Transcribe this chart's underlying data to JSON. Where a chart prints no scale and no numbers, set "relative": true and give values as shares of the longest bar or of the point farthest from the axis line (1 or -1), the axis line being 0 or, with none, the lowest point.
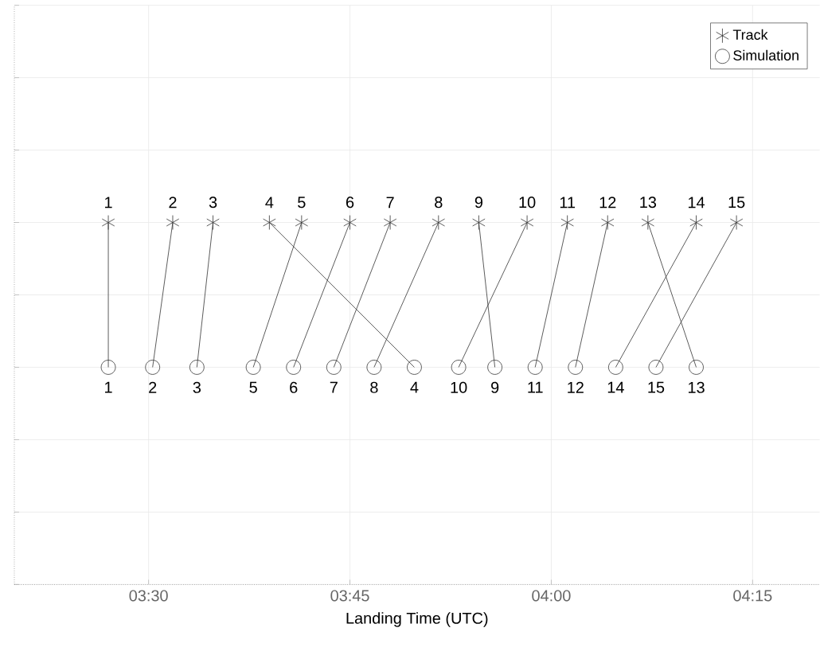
{
  "chart_data": {
    "type": "scatter",
    "xlabel": "Landing Time (UTC)",
    "xlim": [
      3.3333,
      4.3333
    ],
    "xticks": [
      {
        "value": 3.5,
        "label": "03:30"
      },
      {
        "value": 3.75,
        "label": "03:45"
      },
      {
        "value": 4.0,
        "label": "04:00"
      },
      {
        "value": 4.25,
        "label": "04:15"
      }
    ],
    "relative": true,
    "grid": true,
    "legend": "top right",
    "series": [
      {
        "name": "Track",
        "marker": "cross",
        "color": "#333333",
        "x": [
          3.45,
          3.53,
          3.58,
          3.65,
          3.69,
          3.75,
          3.8,
          3.86,
          3.91,
          3.97,
          4.02,
          4.07,
          4.12,
          4.18,
          4.23
        ],
        "values": [
          1,
          1,
          1,
          1,
          1,
          1,
          1,
          1,
          1,
          1,
          1,
          1,
          1,
          1,
          1
        ]
      },
      {
        "name": "Simulation",
        "marker": "circle",
        "color": "#333333",
        "x": [
          3.45,
          3.505,
          3.56,
          3.83,
          3.63,
          3.68,
          3.73,
          3.78,
          3.93,
          3.885,
          3.98,
          4.03,
          4.18,
          4.08,
          4.13
        ],
        "values": [
          0.6,
          0.6,
          0.6,
          0.6,
          0.6,
          0.6,
          0.6,
          0.6,
          0.6,
          0.6,
          0.6,
          0.6,
          0.6,
          0.6,
          0.6
        ]
      },
      {
        "type": "line",
        "marker": "none",
        "line_style": "solid",
        "color": "#333333",
        "x": [
          3.45,
          3.45
        ],
        "values": [
          1,
          0.6
        ]
      },
      {
        "type": "line",
        "marker": "none",
        "line_style": "solid",
        "color": "#333333",
        "x": [
          3.53,
          3.505
        ],
        "values": [
          1,
          0.6
        ]
      },
      {
        "type": "line",
        "marker": "none",
        "line_style": "solid",
        "color": "#333333",
        "x": [
          3.58,
          3.56
        ],
        "values": [
          1,
          0.6
        ]
      },
      {
        "type": "line",
        "marker": "none",
        "line_style": "solid",
        "color": "#333333",
        "x": [
          3.65,
          3.83
        ],
        "values": [
          1,
          0.6
        ]
      },
      {
        "type": "line",
        "marker": "none",
        "line_style": "solid",
        "color": "#333333",
        "x": [
          3.69,
          3.63
        ],
        "values": [
          1,
          0.6
        ]
      },
      {
        "type": "line",
        "marker": "none",
        "line_style": "solid",
        "color": "#333333",
        "x": [
          3.75,
          3.68
        ],
        "values": [
          1,
          0.6
        ]
      },
      {
        "type": "line",
        "marker": "none",
        "line_style": "solid",
        "color": "#333333",
        "x": [
          3.8,
          3.73
        ],
        "values": [
          1,
          0.6
        ]
      },
      {
        "type": "line",
        "marker": "none",
        "line_style": "solid",
        "color": "#333333",
        "x": [
          3.86,
          3.78
        ],
        "values": [
          1,
          0.6
        ]
      },
      {
        "type": "line",
        "marker": "none",
        "line_style": "solid",
        "color": "#333333",
        "x": [
          3.91,
          3.93
        ],
        "values": [
          1,
          0.6
        ]
      },
      {
        "type": "line",
        "marker": "none",
        "line_style": "solid",
        "color": "#333333",
        "x": [
          3.97,
          3.885
        ],
        "values": [
          1,
          0.6
        ]
      },
      {
        "type": "line",
        "marker": "none",
        "line_style": "solid",
        "color": "#333333",
        "x": [
          4.02,
          3.98
        ],
        "values": [
          1,
          0.6
        ]
      },
      {
        "type": "line",
        "marker": "none",
        "line_style": "solid",
        "color": "#333333",
        "x": [
          4.07,
          4.03
        ],
        "values": [
          1,
          0.6
        ]
      },
      {
        "type": "line",
        "marker": "none",
        "line_style": "solid",
        "color": "#333333",
        "x": [
          4.12,
          4.18
        ],
        "values": [
          1,
          0.6
        ]
      },
      {
        "type": "line",
        "marker": "none",
        "line_style": "solid",
        "color": "#333333",
        "x": [
          4.18,
          4.08
        ],
        "values": [
          1,
          0.6
        ]
      },
      {
        "type": "line",
        "marker": "none",
        "line_style": "solid",
        "color": "#333333",
        "x": [
          4.23,
          4.13
        ],
        "values": [
          1,
          0.6
        ]
      }
    ],
    "annotations": [
      {
        "text": "1",
        "x": 3.45,
        "y": 1
      },
      {
        "text": "2",
        "x": 3.53,
        "y": 1
      },
      {
        "text": "3",
        "x": 3.58,
        "y": 1
      },
      {
        "text": "4",
        "x": 3.65,
        "y": 1
      },
      {
        "text": "5",
        "x": 3.69,
        "y": 1
      },
      {
        "text": "6",
        "x": 3.75,
        "y": 1
      },
      {
        "text": "7",
        "x": 3.8,
        "y": 1
      },
      {
        "text": "8",
        "x": 3.86,
        "y": 1
      },
      {
        "text": "9",
        "x": 3.91,
        "y": 1
      },
      {
        "text": "10",
        "x": 3.97,
        "y": 1
      },
      {
        "text": "11",
        "x": 4.02,
        "y": 1
      },
      {
        "text": "12",
        "x": 4.07,
        "y": 1
      },
      {
        "text": "13",
        "x": 4.12,
        "y": 1
      },
      {
        "text": "14",
        "x": 4.18,
        "y": 1
      },
      {
        "text": "15",
        "x": 4.23,
        "y": 1
      },
      {
        "text": "1",
        "x": 3.45,
        "y": 0.6
      },
      {
        "text": "2",
        "x": 3.505,
        "y": 0.6
      },
      {
        "text": "3",
        "x": 3.56,
        "y": 0.6
      },
      {
        "text": "4",
        "x": 3.83,
        "y": 0.6
      },
      {
        "text": "5",
        "x": 3.63,
        "y": 0.6
      },
      {
        "text": "6",
        "x": 3.68,
        "y": 0.6
      },
      {
        "text": "7",
        "x": 3.73,
        "y": 0.6
      },
      {
        "text": "8",
        "x": 3.78,
        "y": 0.6
      },
      {
        "text": "9",
        "x": 3.93,
        "y": 0.6
      },
      {
        "text": "10",
        "x": 3.885,
        "y": 0.6
      },
      {
        "text": "11",
        "x": 3.98,
        "y": 0.6
      },
      {
        "text": "12",
        "x": 4.03,
        "y": 0.6
      },
      {
        "text": "13",
        "x": 4.18,
        "y": 0.6
      },
      {
        "text": "14",
        "x": 4.08,
        "y": 0.6
      },
      {
        "text": "15",
        "x": 4.13,
        "y": 0.6
      }
    ]
  }
}
